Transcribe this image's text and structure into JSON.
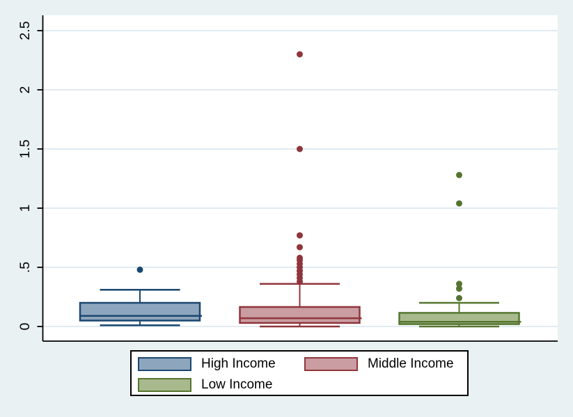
{
  "chart_data": {
    "type": "box",
    "title": "",
    "xlabel": "",
    "ylabel": "",
    "grid": true,
    "ylim": [
      -0.12,
      2.63
    ],
    "y_ticks": [
      {
        "value": 0,
        "label": "0"
      },
      {
        "value": 0.5,
        "label": ".5"
      },
      {
        "value": 1,
        "label": "1"
      },
      {
        "value": 1.5,
        "label": "1.5"
      },
      {
        "value": 2,
        "label": "2"
      },
      {
        "value": 2.5,
        "label": "2.5"
      }
    ],
    "series": [
      {
        "name": "High Income",
        "border_color": "#1a476f",
        "fill_color": "#8da5bd",
        "whisker_low": 0.01,
        "q1": 0.05,
        "median": 0.09,
        "q3": 0.2,
        "whisker_high": 0.31,
        "outliers": [
          0.48
        ]
      },
      {
        "name": "Middle Income",
        "border_color": "#90353b",
        "fill_color": "#c99da1",
        "whisker_low": 0.0,
        "q1": 0.03,
        "median": 0.07,
        "q3": 0.165,
        "whisker_high": 0.36,
        "outliers": [
          0.38,
          0.41,
          0.44,
          0.47,
          0.5,
          0.53,
          0.56,
          0.58,
          0.67,
          0.77,
          1.5,
          2.3
        ]
      },
      {
        "name": "Low Income",
        "border_color": "#55752f",
        "fill_color": "#a9b98e",
        "whisker_low": 0.0,
        "q1": 0.02,
        "median": 0.04,
        "q3": 0.115,
        "whisker_high": 0.2,
        "outliers": [
          0.24,
          0.32,
          0.36,
          1.04,
          1.28
        ]
      }
    ],
    "legend": {
      "position": "bottom",
      "entries": [
        "High Income",
        "Middle Income",
        "Low Income"
      ]
    }
  },
  "colors": {
    "background": "#eaf1f3",
    "plot_background": "#ffffff",
    "gridline": "#e0eaf1",
    "axis": "#000000",
    "tick_label": "#000000",
    "legend_background": "#ffffff",
    "legend_border": "#000000",
    "legend_text": "#000000"
  }
}
